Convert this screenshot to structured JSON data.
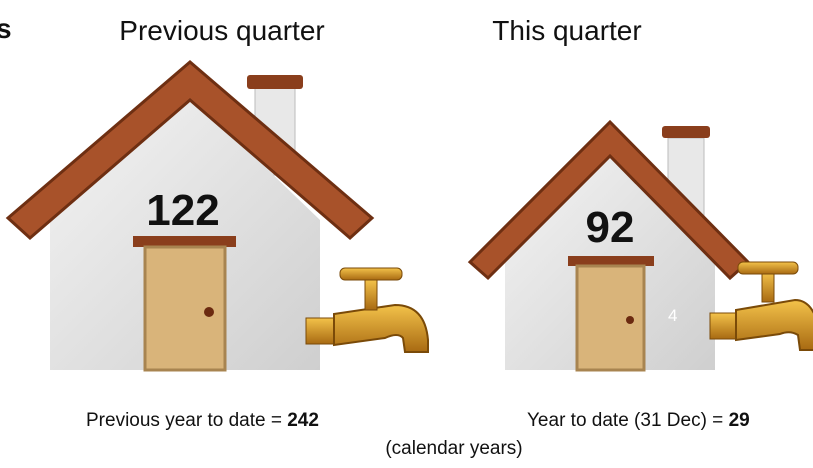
{
  "header_fragment": "s",
  "houses": [
    {
      "label": "Previous quarter",
      "value": "122"
    },
    {
      "label": "This quarter",
      "value": "92",
      "note": "4"
    }
  ],
  "footer": {
    "previous": {
      "text": "Previous year to date = ",
      "value": "242"
    },
    "current": {
      "text": "Year to date (31 Dec) = ",
      "value": "29"
    },
    "caption": "(calendar years)"
  }
}
